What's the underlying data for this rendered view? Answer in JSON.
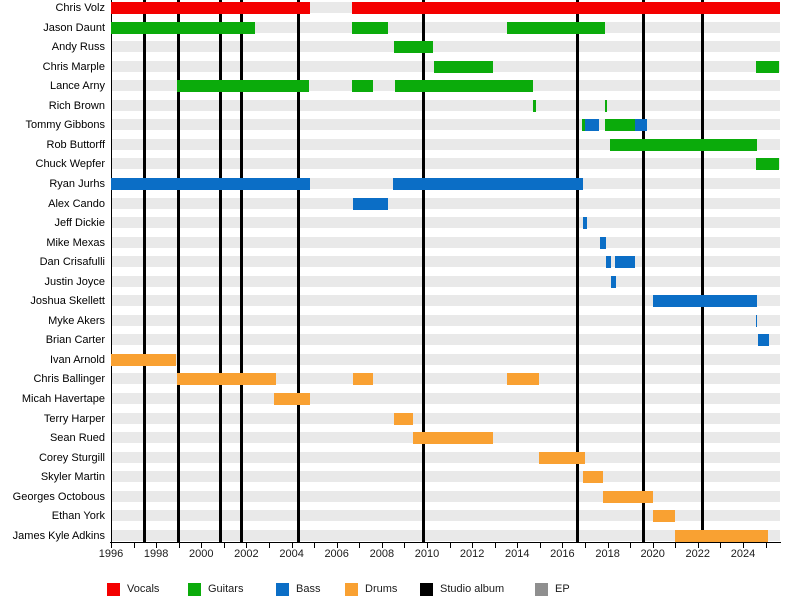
{
  "chart_data": {
    "type": "bar",
    "subtype": "band-members-timeline-gantt",
    "title": "",
    "xlabel": "",
    "ylabel": "",
    "x_axis": {
      "start_year": 1996,
      "end_year": 2025.65,
      "tick_step_years": 1,
      "labeled_ticks": [
        1996,
        1998,
        2000,
        2002,
        2004,
        2006,
        2008,
        2010,
        2012,
        2014,
        2016,
        2018,
        2020,
        2022,
        2024
      ]
    },
    "legend": [
      {
        "key": "vocals",
        "label": "Vocals",
        "color": "#f40000",
        "kind": "bar"
      },
      {
        "key": "guitars",
        "label": "Guitars",
        "color": "#0bab0b",
        "kind": "bar"
      },
      {
        "key": "bass",
        "label": "Bass",
        "color": "#0b6ec6",
        "kind": "bar"
      },
      {
        "key": "drums",
        "label": "Drums",
        "color": "#f9a132",
        "kind": "bar"
      },
      {
        "key": "studio_album",
        "label": "Studio album",
        "color": "#000000",
        "kind": "line"
      },
      {
        "key": "ep",
        "label": "EP",
        "color": "#8f8f8f",
        "kind": "line"
      }
    ],
    "members": [
      {
        "name": "Chris Volz",
        "segments": [
          {
            "role": "vocals",
            "start": 1996.0,
            "end": 2004.82
          },
          {
            "role": "vocals",
            "start": 2006.68,
            "end": 2025.64
          }
        ]
      },
      {
        "name": "Jason Daunt",
        "segments": [
          {
            "role": "guitars",
            "start": 1996.0,
            "end": 2002.38
          },
          {
            "role": "guitars",
            "start": 2006.68,
            "end": 2008.27
          },
          {
            "role": "guitars",
            "start": 2013.55,
            "end": 2017.89
          }
        ]
      },
      {
        "name": "Andy Russ",
        "segments": [
          {
            "role": "guitars",
            "start": 2008.54,
            "end": 2010.27
          }
        ]
      },
      {
        "name": "Chris Marple",
        "segments": [
          {
            "role": "guitars",
            "start": 2010.31,
            "end": 2012.92
          },
          {
            "role": "guitars",
            "start": 2024.57,
            "end": 2025.61
          }
        ]
      },
      {
        "name": "Lance Arny",
        "segments": [
          {
            "role": "guitars",
            "start": 1998.92,
            "end": 2004.77
          },
          {
            "role": "guitars",
            "start": 2006.68,
            "end": 2007.61
          },
          {
            "role": "guitars",
            "start": 2008.58,
            "end": 2014.72
          }
        ]
      },
      {
        "name": "Rich Brown",
        "segments": [
          {
            "role": "guitars",
            "start": 2014.7,
            "end": 2014.83
          },
          {
            "role": "guitars",
            "start": 2017.87,
            "end": 2017.98
          }
        ]
      },
      {
        "name": "Tommy Gibbons",
        "segments": [
          {
            "role": "guitars",
            "start": 2016.87,
            "end": 2017.0
          },
          {
            "role": "bass",
            "start": 2017.0,
            "end": 2017.62
          },
          {
            "role": "guitars",
            "start": 2017.89,
            "end": 2019.22
          },
          {
            "role": "bass",
            "start": 2019.22,
            "end": 2019.75
          }
        ]
      },
      {
        "name": "Rob Buttorff",
        "segments": [
          {
            "role": "guitars",
            "start": 2018.11,
            "end": 2024.6
          }
        ]
      },
      {
        "name": "Chuck Wepfer",
        "segments": [
          {
            "role": "guitars",
            "start": 2024.57,
            "end": 2025.61
          }
        ]
      },
      {
        "name": "Ryan Jurhs",
        "segments": [
          {
            "role": "bass",
            "start": 1996.0,
            "end": 2004.82
          },
          {
            "role": "bass",
            "start": 2008.49,
            "end": 2016.92
          }
        ]
      },
      {
        "name": "Alex Cando",
        "segments": [
          {
            "role": "bass",
            "start": 2006.72,
            "end": 2008.27
          }
        ]
      },
      {
        "name": "Jeff Dickie",
        "segments": [
          {
            "role": "bass",
            "start": 2016.92,
            "end": 2017.11
          }
        ]
      },
      {
        "name": "Mike Mexas",
        "segments": [
          {
            "role": "bass",
            "start": 2017.66,
            "end": 2017.92
          }
        ]
      },
      {
        "name": "Dan Crisafulli",
        "segments": [
          {
            "role": "bass",
            "start": 2017.91,
            "end": 2018.17
          },
          {
            "role": "bass",
            "start": 2018.33,
            "end": 2019.22
          }
        ]
      },
      {
        "name": "Justin Joyce",
        "segments": [
          {
            "role": "bass",
            "start": 2018.14,
            "end": 2018.37
          }
        ]
      },
      {
        "name": "Joshua Skellett",
        "segments": [
          {
            "role": "bass",
            "start": 2020.0,
            "end": 2024.63
          }
        ]
      },
      {
        "name": "Myke Akers",
        "segments": [
          {
            "role": "bass",
            "start": 2024.57,
            "end": 2024.64
          }
        ]
      },
      {
        "name": "Brian Carter",
        "segments": [
          {
            "role": "bass",
            "start": 2024.65,
            "end": 2025.16
          }
        ]
      },
      {
        "name": "Ivan Arnold",
        "segments": [
          {
            "role": "drums",
            "start": 1996.0,
            "end": 1998.88
          }
        ]
      },
      {
        "name": "Chris Ballinger",
        "segments": [
          {
            "role": "drums",
            "start": 1998.92,
            "end": 2003.31
          },
          {
            "role": "drums",
            "start": 2006.72,
            "end": 2007.61
          },
          {
            "role": "drums",
            "start": 2013.55,
            "end": 2014.96
          }
        ]
      },
      {
        "name": "Micah Havertape",
        "segments": [
          {
            "role": "drums",
            "start": 2003.22,
            "end": 2004.82
          }
        ]
      },
      {
        "name": "Terry Harper",
        "segments": [
          {
            "role": "drums",
            "start": 2008.54,
            "end": 2009.38
          }
        ]
      },
      {
        "name": "Sean Rued",
        "segments": [
          {
            "role": "drums",
            "start": 2009.38,
            "end": 2012.92
          }
        ]
      },
      {
        "name": "Corey Sturgill",
        "segments": [
          {
            "role": "drums",
            "start": 2014.97,
            "end": 2017.0
          }
        ]
      },
      {
        "name": "Skyler Martin",
        "segments": [
          {
            "role": "drums",
            "start": 2016.93,
            "end": 2017.8
          }
        ]
      },
      {
        "name": "Georges Octobous",
        "segments": [
          {
            "role": "drums",
            "start": 2017.8,
            "end": 2020.01
          }
        ]
      },
      {
        "name": "Ethan York",
        "segments": [
          {
            "role": "drums",
            "start": 2020.01,
            "end": 2020.99
          }
        ]
      },
      {
        "name": "James Kyle Adkins",
        "segments": [
          {
            "role": "drums",
            "start": 2020.99,
            "end": 2025.1
          }
        ]
      }
    ],
    "release_lines": [
      {
        "year": 1997.48,
        "type": "studio_album"
      },
      {
        "year": 1999.0,
        "type": "studio_album"
      },
      {
        "year": 2000.83,
        "type": "studio_album"
      },
      {
        "year": 2001.8,
        "type": "studio_album"
      },
      {
        "year": 2004.3,
        "type": "studio_album"
      },
      {
        "year": 2009.85,
        "type": "studio_album"
      },
      {
        "year": 2016.65,
        "type": "studio_album"
      },
      {
        "year": 2019.59,
        "type": "studio_album"
      },
      {
        "year": 2022.19,
        "type": "studio_album"
      }
    ],
    "layout_hints": {
      "grid": "horizontal striped rows",
      "legend_position": "bottom",
      "bars_drawn_over_release_lines": true
    }
  }
}
